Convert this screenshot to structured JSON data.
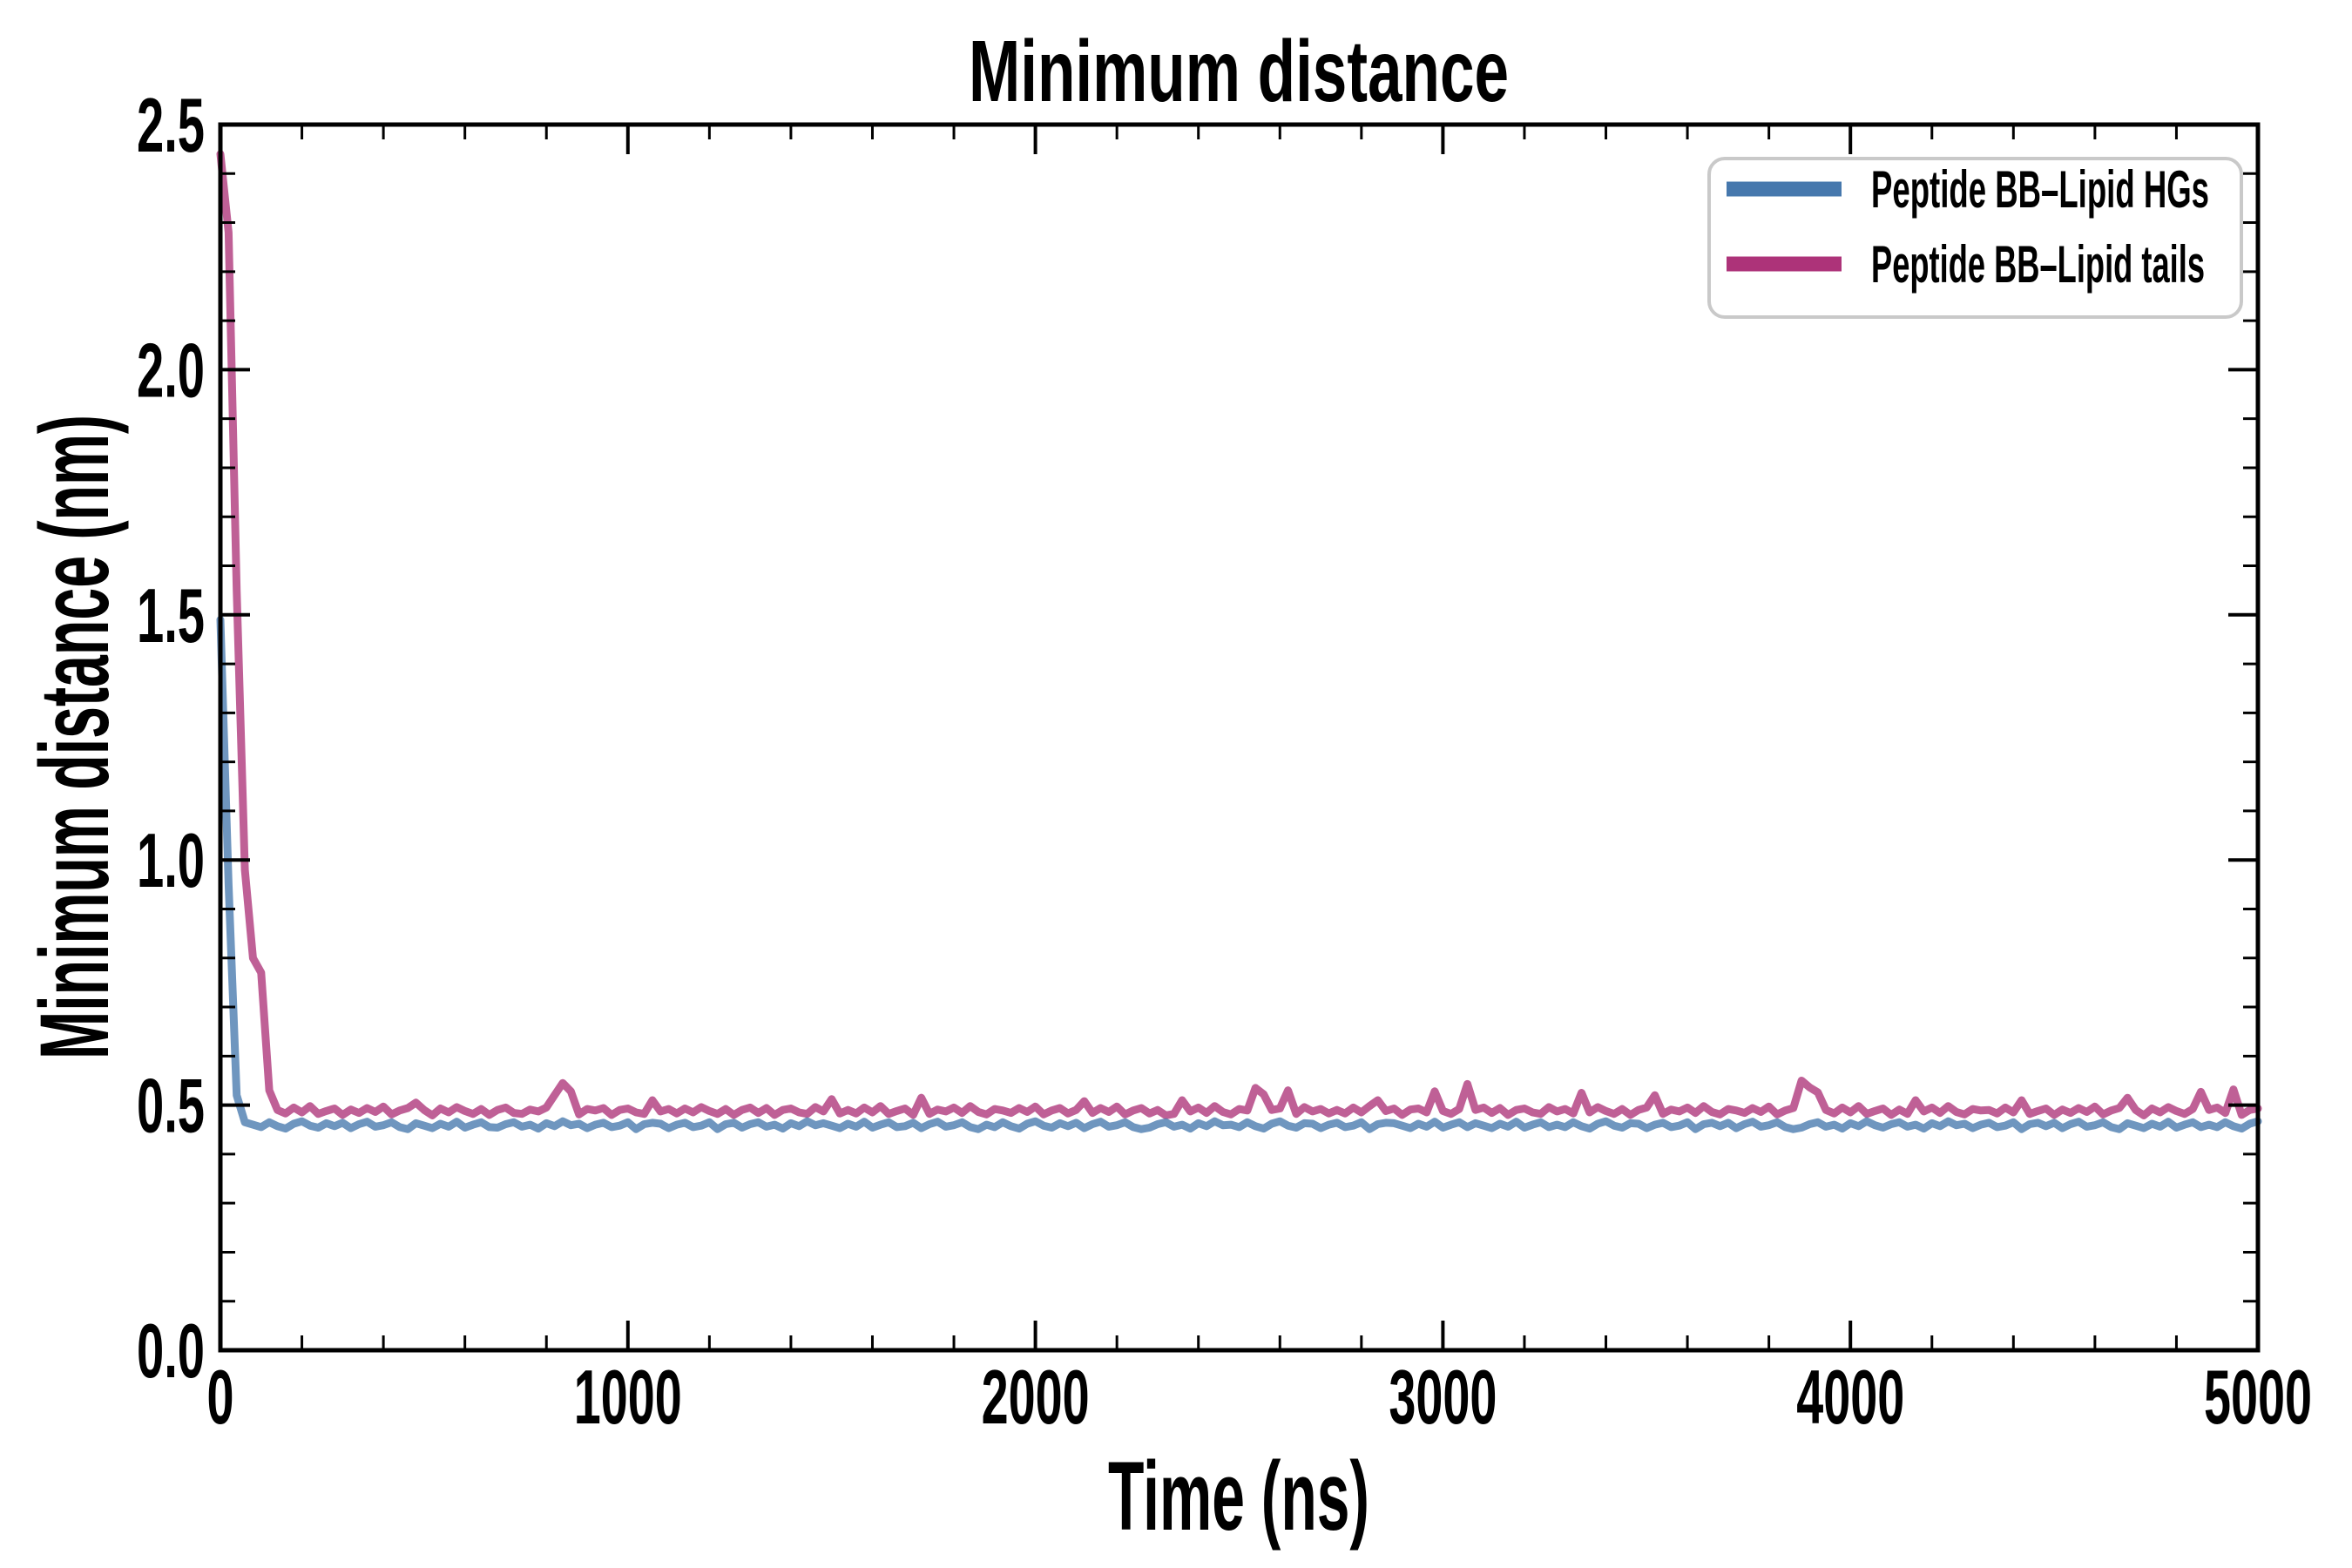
{
  "figure": {
    "title": "Minimum distance",
    "xlabel": "Time (ns)",
    "ylabel": "Minimum distance (nm)",
    "background_color": "#ffffff",
    "axis_color": "#000000"
  },
  "legend": {
    "border_color": "#c9c9c9",
    "background_color": "#ffffff",
    "entries": [
      {
        "label": "Peptide BB–Lipid HGs",
        "color": "#4678ad"
      },
      {
        "label": "Peptide BB–Lipid tails",
        "color": "#ad3379"
      }
    ]
  },
  "chart_data": {
    "type": "line",
    "title": "Minimum distance",
    "xlabel": "Time (ns)",
    "ylabel": "Minimum distance (nm)",
    "xlim": [
      0,
      5000
    ],
    "ylim": [
      0.0,
      2.5
    ],
    "x_ticks_major": [
      0,
      1000,
      2000,
      3000,
      4000,
      5000
    ],
    "x_tick_labels": [
      "0",
      "1000",
      "2000",
      "3000",
      "4000",
      "5000"
    ],
    "x_minor_step": 200,
    "y_ticks_major": [
      0.0,
      0.5,
      1.0,
      1.5,
      2.0,
      2.5
    ],
    "y_tick_labels": [
      "0.0",
      "0.5",
      "1.0",
      "1.5",
      "2.0",
      "2.5"
    ],
    "y_minor_step": 0.1,
    "grid": false,
    "tick_direction": "in",
    "legend_position": "upper right",
    "x_start": 0,
    "x_step": 20,
    "series": [
      {
        "name": "Peptide BB–Lipid tails",
        "color": "#ad3379",
        "line_width": 9,
        "opacity": 0.78,
        "z": 1,
        "values": [
          2.44,
          2.28,
          1.55,
          0.98,
          0.8,
          0.77,
          0.53,
          0.49,
          0.483,
          0.495,
          0.485,
          0.498,
          0.482,
          0.488,
          0.493,
          0.48,
          0.491,
          0.484,
          0.494,
          0.486,
          0.497,
          0.481,
          0.489,
          0.494,
          0.505,
          0.49,
          0.479,
          0.493,
          0.485,
          0.496,
          0.488,
          0.482,
          0.492,
          0.48,
          0.49,
          0.495,
          0.484,
          0.482,
          0.491,
          0.487,
          0.495,
          0.52,
          0.545,
          0.528,
          0.481,
          0.492,
          0.489,
          0.494,
          0.48,
          0.49,
          0.493,
          0.485,
          0.482,
          0.51,
          0.487,
          0.492,
          0.483,
          0.493,
          0.485,
          0.496,
          0.488,
          0.482,
          0.492,
          0.48,
          0.49,
          0.495,
          0.484,
          0.494,
          0.48,
          0.49,
          0.493,
          0.485,
          0.482,
          0.496,
          0.487,
          0.512,
          0.483,
          0.49,
          0.483,
          0.495,
          0.485,
          0.498,
          0.482,
          0.488,
          0.493,
          0.48,
          0.515,
          0.482,
          0.491,
          0.487,
          0.495,
          0.484,
          0.498,
          0.486,
          0.481,
          0.492,
          0.489,
          0.484,
          0.494,
          0.486,
          0.497,
          0.481,
          0.489,
          0.494,
          0.483,
          0.49,
          0.508,
          0.484,
          0.494,
          0.486,
          0.497,
          0.481,
          0.489,
          0.494,
          0.483,
          0.49,
          0.479,
          0.482,
          0.51,
          0.487,
          0.495,
          0.484,
          0.498,
          0.486,
          0.481,
          0.492,
          0.489,
          0.535,
          0.522,
          0.49,
          0.493,
          0.53,
          0.482,
          0.496,
          0.487,
          0.492,
          0.483,
          0.49,
          0.483,
          0.495,
          0.485,
          0.498,
          0.51,
          0.488,
          0.493,
          0.48,
          0.491,
          0.493,
          0.485,
          0.528,
          0.488,
          0.482,
          0.492,
          0.543,
          0.49,
          0.495,
          0.484,
          0.494,
          0.48,
          0.49,
          0.493,
          0.485,
          0.482,
          0.496,
          0.487,
          0.492,
          0.483,
          0.525,
          0.485,
          0.496,
          0.488,
          0.482,
          0.492,
          0.48,
          0.49,
          0.495,
          0.52,
          0.482,
          0.491,
          0.487,
          0.495,
          0.484,
          0.498,
          0.486,
          0.481,
          0.492,
          0.489,
          0.484,
          0.494,
          0.486,
          0.497,
          0.481,
          0.489,
          0.494,
          0.55,
          0.536,
          0.526,
          0.49,
          0.483,
          0.495,
          0.485,
          0.498,
          0.482,
          0.488,
          0.493,
          0.48,
          0.491,
          0.482,
          0.51,
          0.487,
          0.495,
          0.484,
          0.498,
          0.486,
          0.481,
          0.492,
          0.489,
          0.49,
          0.483,
          0.495,
          0.485,
          0.51,
          0.482,
          0.488,
          0.493,
          0.48,
          0.491,
          0.484,
          0.494,
          0.486,
          0.497,
          0.481,
          0.489,
          0.494,
          0.515,
          0.49,
          0.479,
          0.493,
          0.485,
          0.496,
          0.488,
          0.482,
          0.492,
          0.527,
          0.49,
          0.495,
          0.484,
          0.532,
          0.48,
          0.49,
          0.493
        ]
      },
      {
        "name": "Peptide BB–Lipid HGs",
        "color": "#4678ad",
        "line_width": 9,
        "opacity": 0.78,
        "z": 2,
        "values": [
          1.49,
          0.95,
          0.52,
          0.465,
          0.46,
          0.455,
          0.465,
          0.457,
          0.452,
          0.462,
          0.467,
          0.458,
          0.454,
          0.463,
          0.457,
          0.464,
          0.453,
          0.461,
          0.466,
          0.456,
          0.459,
          0.465,
          0.455,
          0.451,
          0.463,
          0.458,
          0.453,
          0.462,
          0.456,
          0.466,
          0.454,
          0.46,
          0.465,
          0.455,
          0.454,
          0.461,
          0.465,
          0.456,
          0.46,
          0.452,
          0.463,
          0.457,
          0.467,
          0.459,
          0.462,
          0.453,
          0.46,
          0.464,
          0.455,
          0.458,
          0.465,
          0.451,
          0.461,
          0.464,
          0.462,
          0.453,
          0.46,
          0.464,
          0.455,
          0.458,
          0.465,
          0.451,
          0.461,
          0.464,
          0.454,
          0.461,
          0.465,
          0.456,
          0.46,
          0.452,
          0.463,
          0.457,
          0.467,
          0.459,
          0.463,
          0.458,
          0.453,
          0.462,
          0.456,
          0.466,
          0.454,
          0.46,
          0.465,
          0.455,
          0.457,
          0.464,
          0.453,
          0.461,
          0.466,
          0.456,
          0.459,
          0.465,
          0.455,
          0.451,
          0.46,
          0.455,
          0.465,
          0.457,
          0.452,
          0.462,
          0.467,
          0.458,
          0.454,
          0.463,
          0.457,
          0.464,
          0.453,
          0.461,
          0.466,
          0.456,
          0.459,
          0.465,
          0.455,
          0.451,
          0.454,
          0.461,
          0.465,
          0.456,
          0.46,
          0.452,
          0.463,
          0.457,
          0.467,
          0.459,
          0.46,
          0.455,
          0.465,
          0.457,
          0.452,
          0.462,
          0.467,
          0.458,
          0.454,
          0.463,
          0.462,
          0.453,
          0.46,
          0.464,
          0.455,
          0.458,
          0.465,
          0.451,
          0.461,
          0.464,
          0.463,
          0.458,
          0.453,
          0.462,
          0.456,
          0.466,
          0.454,
          0.46,
          0.465,
          0.455,
          0.463,
          0.458,
          0.453,
          0.462,
          0.456,
          0.466,
          0.454,
          0.46,
          0.465,
          0.455,
          0.46,
          0.455,
          0.465,
          0.457,
          0.452,
          0.462,
          0.467,
          0.458,
          0.454,
          0.463,
          0.462,
          0.453,
          0.46,
          0.464,
          0.455,
          0.458,
          0.465,
          0.451,
          0.461,
          0.464,
          0.457,
          0.464,
          0.453,
          0.461,
          0.466,
          0.456,
          0.459,
          0.465,
          0.455,
          0.451,
          0.454,
          0.461,
          0.465,
          0.456,
          0.46,
          0.452,
          0.463,
          0.457,
          0.467,
          0.459,
          0.454,
          0.461,
          0.465,
          0.456,
          0.46,
          0.452,
          0.463,
          0.457,
          0.467,
          0.459,
          0.462,
          0.453,
          0.46,
          0.464,
          0.455,
          0.458,
          0.465,
          0.451,
          0.461,
          0.464,
          0.457,
          0.464,
          0.453,
          0.461,
          0.466,
          0.456,
          0.459,
          0.465,
          0.455,
          0.451,
          0.463,
          0.458,
          0.453,
          0.462,
          0.456,
          0.466,
          0.454,
          0.46,
          0.465,
          0.455,
          0.46,
          0.455,
          0.465,
          0.457,
          0.452,
          0.462,
          0.467
        ]
      }
    ]
  }
}
